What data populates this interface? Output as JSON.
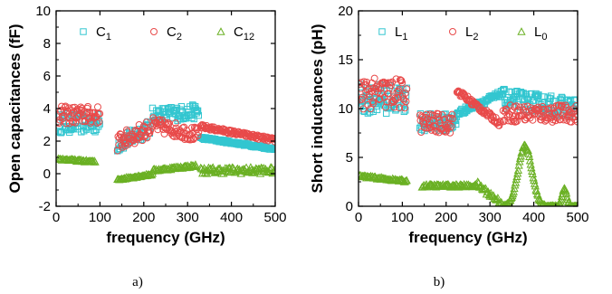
{
  "chart_data": [
    {
      "type": "scatter",
      "panel_label": "a)",
      "xlabel": "frequency (GHz)",
      "ylabel": "Open capacitances (fF)",
      "xlim": [
        0,
        500
      ],
      "ylim": [
        -2,
        10
      ],
      "xticks": [
        "0",
        "100",
        "200",
        "300",
        "400",
        "500"
      ],
      "yticks": [
        "-2",
        "0",
        "2",
        "4",
        "6",
        "8",
        "10"
      ],
      "legend_position": "top",
      "series": [
        {
          "name": "C",
          "subscript": "1",
          "marker": "square",
          "color": "#33c6d0",
          "segments": [
            {
              "x0": 5,
              "x1": 100,
              "step": 1.5,
              "base": 3.1,
              "slope": 0.0,
              "noise": 0.6
            },
            {
              "x0": 140,
              "x1": 215,
              "step": 1.5,
              "base": 1.8,
              "slope": 0.014,
              "noise": 0.5
            },
            {
              "x0": 220,
              "x1": 325,
              "step": 1.5,
              "base": 3.6,
              "slope": 0.002,
              "noise": 0.45
            },
            {
              "x0": 330,
              "x1": 500,
              "step": 1.5,
              "base": 2.2,
              "slope": -0.004,
              "noise": 0.08
            }
          ]
        },
        {
          "name": "C",
          "subscript": "2",
          "marker": "circle",
          "color": "#e84a4a",
          "segments": [
            {
              "x0": 5,
              "x1": 100,
              "step": 1.5,
              "base": 3.6,
              "slope": 0.0,
              "noise": 0.55
            },
            {
              "x0": 140,
              "x1": 215,
              "step": 1.5,
              "base": 1.9,
              "slope": 0.012,
              "noise": 0.55
            },
            {
              "x0": 220,
              "x1": 325,
              "step": 1.5,
              "base": 3.0,
              "slope": -0.006,
              "noise": 0.45
            },
            {
              "x0": 330,
              "x1": 500,
              "step": 1.5,
              "base": 2.9,
              "slope": -0.005,
              "noise": 0.12
            }
          ]
        },
        {
          "name": "C",
          "subscript": "12",
          "marker": "triangle",
          "color": "#6ab023",
          "segments": [
            {
              "x0": 5,
              "x1": 90,
              "step": 2,
              "base": 0.9,
              "slope": -0.002,
              "noise": 0.06
            },
            {
              "x0": 140,
              "x1": 220,
              "step": 2,
              "base": -0.35,
              "slope": 0.004,
              "noise": 0.06
            },
            {
              "x0": 220,
              "x1": 320,
              "step": 2,
              "base": 0.2,
              "slope": 0.003,
              "noise": 0.08
            },
            {
              "x0": 330,
              "x1": 500,
              "step": 2,
              "base": 0.2,
              "slope": 0.0,
              "noise": 0.2
            }
          ]
        }
      ]
    },
    {
      "type": "scatter",
      "panel_label": "b)",
      "xlabel": "frequency (GHz)",
      "ylabel": "Short inductances (pH)",
      "xlim": [
        0,
        500
      ],
      "ylim": [
        0,
        20
      ],
      "xticks": [
        "0",
        "100",
        "200",
        "300",
        "400",
        "500"
      ],
      "yticks": [
        "0",
        "5",
        "10",
        "15",
        "20"
      ],
      "legend_position": "top",
      "series": [
        {
          "name": "L",
          "subscript": "1",
          "marker": "square",
          "color": "#33c6d0",
          "segments": [
            {
              "x0": 2,
              "x1": 110,
              "step": 1.5,
              "base": 11.0,
              "slope": 0.0,
              "noise": 1.5
            },
            {
              "x0": 140,
              "x1": 225,
              "step": 1.5,
              "base": 8.6,
              "slope": 0.0,
              "noise": 0.9
            },
            {
              "x0": 225,
              "x1": 330,
              "step": 1.5,
              "base": 9.5,
              "slope": 0.02,
              "noise": 0.3
            },
            {
              "x0": 330,
              "x1": 500,
              "step": 1.5,
              "base": 11.0,
              "slope": -0.006,
              "noise": 1.0
            }
          ]
        },
        {
          "name": "L",
          "subscript": "2",
          "marker": "circle",
          "color": "#e84a4a",
          "segments": [
            {
              "x0": 2,
              "x1": 110,
              "step": 1.5,
              "base": 11.5,
              "slope": 0.0,
              "noise": 1.6
            },
            {
              "x0": 140,
              "x1": 215,
              "step": 1.5,
              "base": 8.5,
              "slope": 0.0,
              "noise": 1.0
            },
            {
              "x0": 225,
              "x1": 325,
              "step": 1.5,
              "base": 11.8,
              "slope": -0.034,
              "noise": 0.3
            },
            {
              "x0": 330,
              "x1": 500,
              "step": 1.5,
              "base": 9.5,
              "slope": 0.0,
              "noise": 0.9
            }
          ]
        },
        {
          "name": "L",
          "subscript": "0",
          "marker": "triangle",
          "color": "#6ab023",
          "segments": [
            {
              "x0": 2,
              "x1": 110,
              "step": 2,
              "base": 3.1,
              "slope": -0.005,
              "noise": 0.12
            },
            {
              "x0": 145,
              "x1": 270,
              "step": 2,
              "base": 2.1,
              "slope": 0.0,
              "noise": 0.15
            },
            {
              "x0": 270,
              "x1": 330,
              "step": 2,
              "base": 2.3,
              "slope": -0.035,
              "noise": 0.3
            },
            {
              "x0": 330,
              "x1": 440,
              "step": 1.5,
              "base": 0.0,
              "slope": 0.0,
              "noise": 0.1,
              "bump": {
                "center": 380,
                "width": 22,
                "height": 6.2
              }
            },
            {
              "x0": 440,
              "x1": 500,
              "step": 1.5,
              "base": 0.0,
              "slope": 0.0,
              "noise": 0.1,
              "bump": {
                "center": 470,
                "width": 8,
                "height": 1.8
              }
            }
          ]
        }
      ]
    }
  ]
}
